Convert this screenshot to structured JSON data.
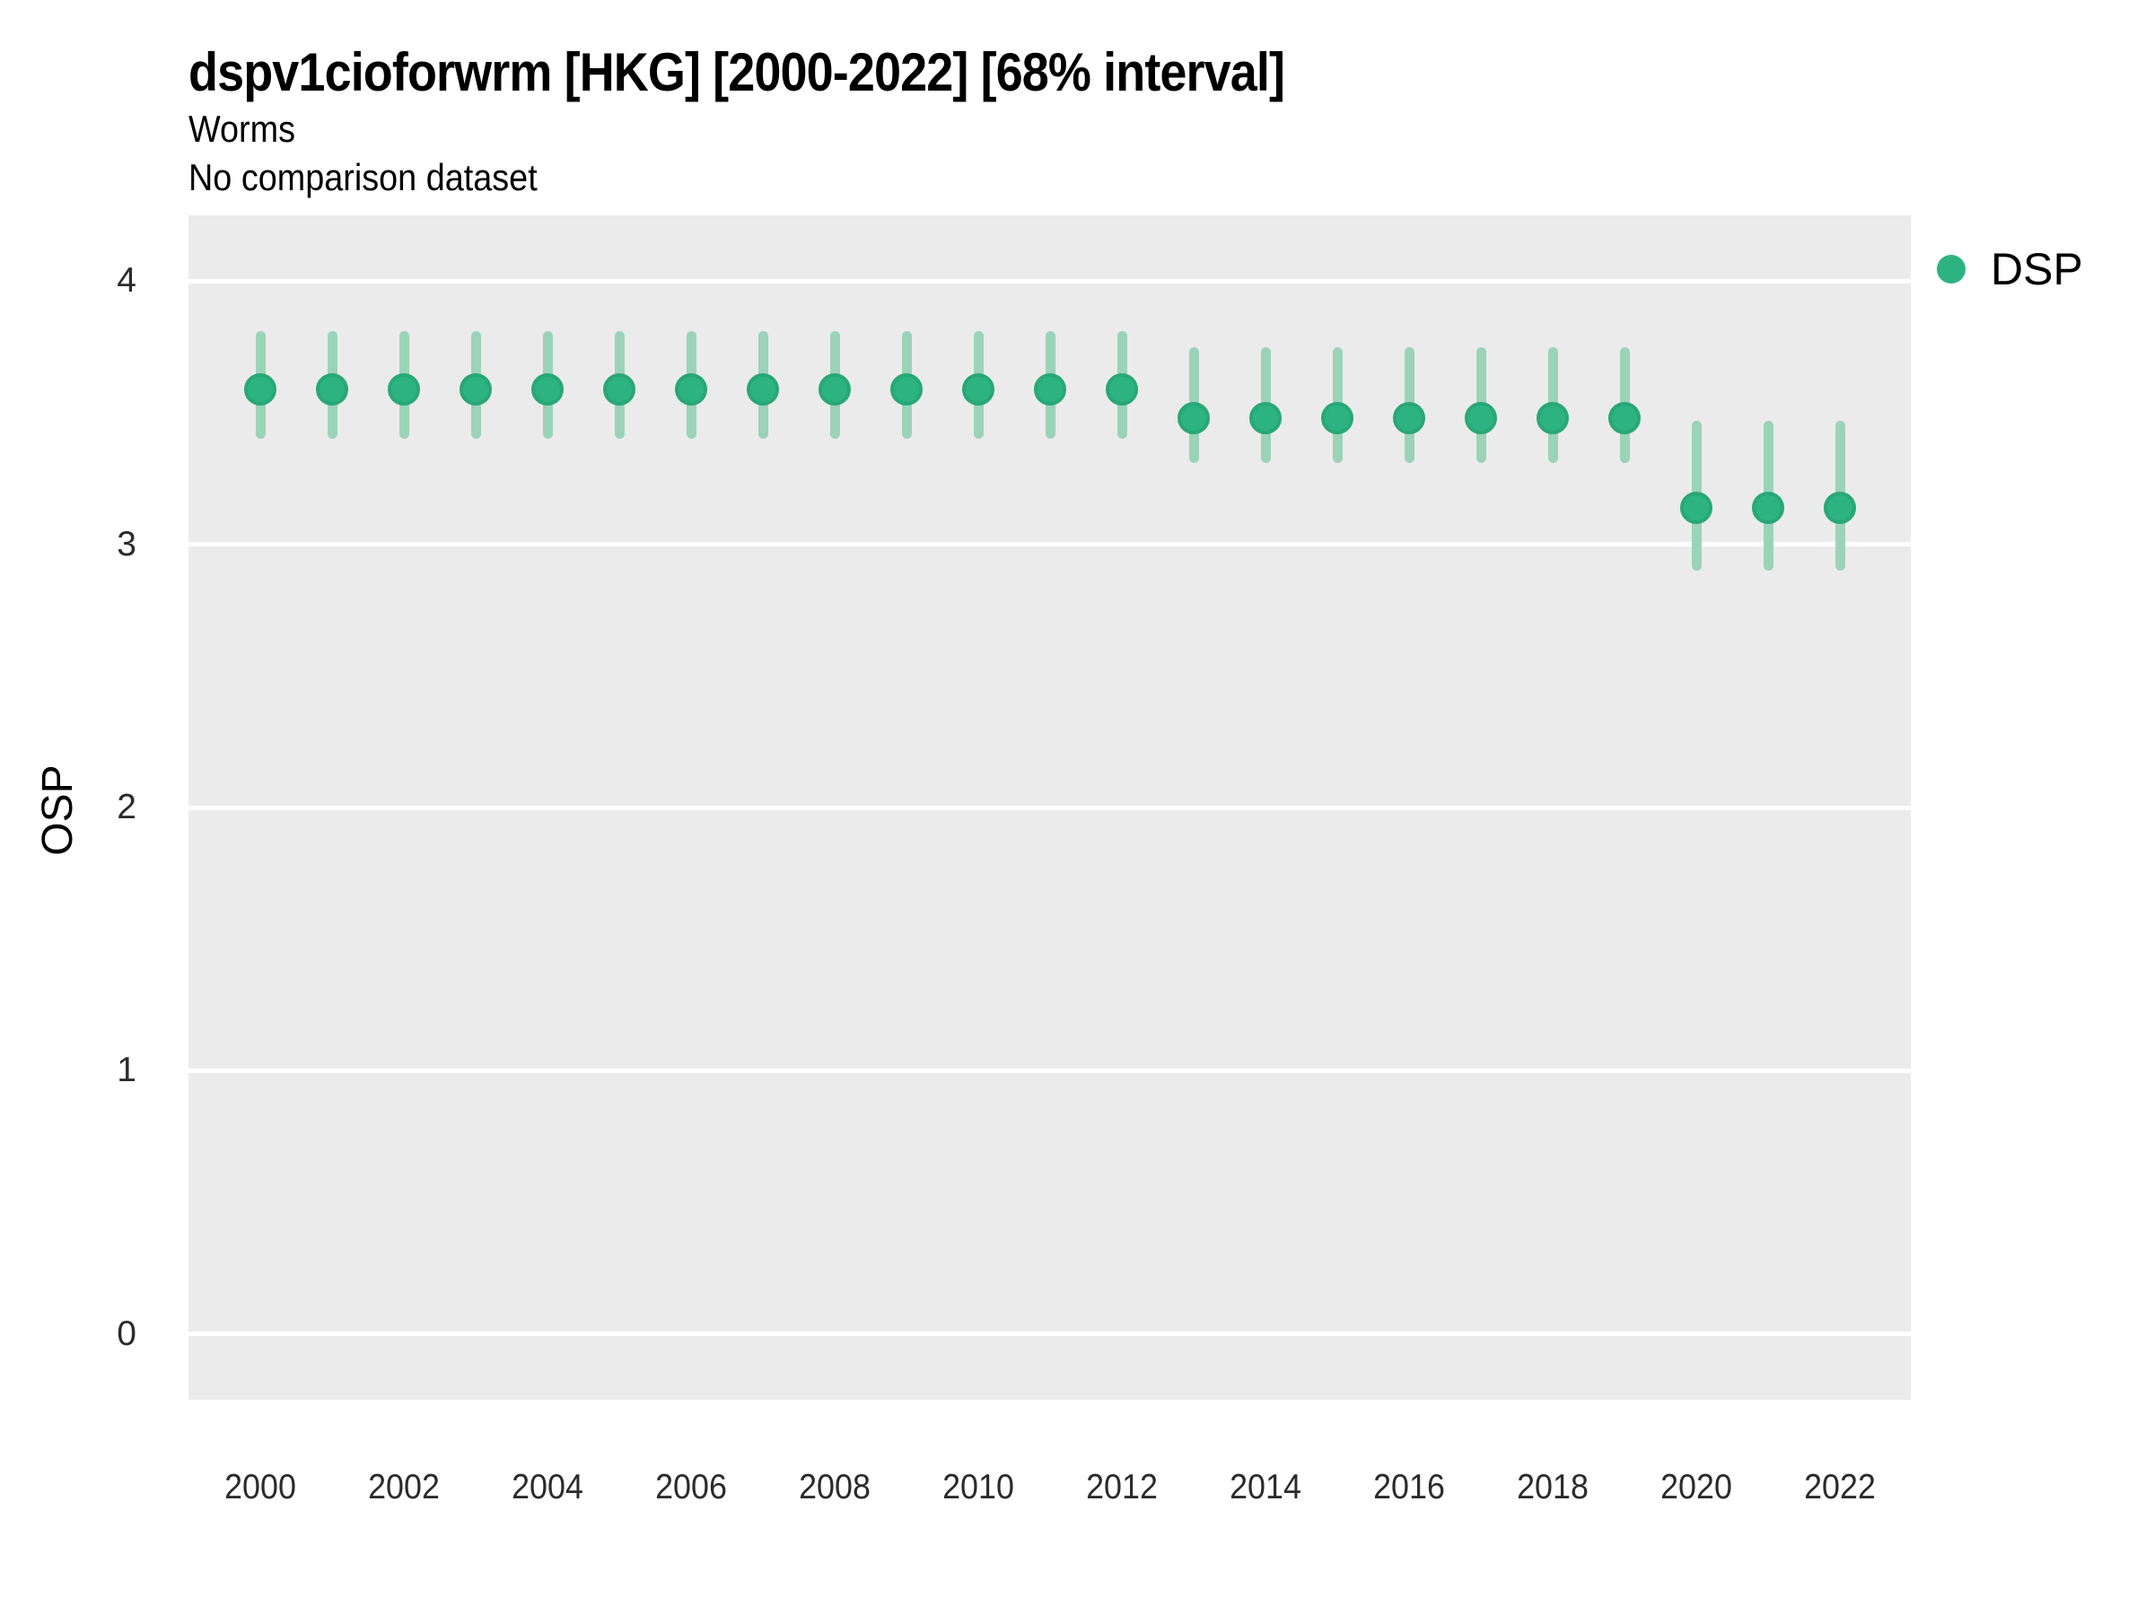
{
  "header": {
    "title": "dspv1cioforwrm [HKG] [2000-2022] [68% interval]",
    "subtitle": "Worms",
    "comparison_note": "No comparison dataset"
  },
  "legend": {
    "position": "right-top",
    "entries": [
      {
        "label": "DSP",
        "color": "#2DB381"
      }
    ]
  },
  "chart_data": {
    "type": "scatter",
    "subtype": "pointrange",
    "title": "dspv1cioforwrm [HKG] [2000-2022] [68% interval]",
    "subtitle": "Worms",
    "note": "No comparison dataset",
    "interval": "68%",
    "xlabel": "",
    "ylabel": "OSP",
    "x": [
      2000,
      2001,
      2002,
      2003,
      2004,
      2005,
      2006,
      2007,
      2008,
      2009,
      2010,
      2011,
      2012,
      2013,
      2014,
      2015,
      2016,
      2017,
      2018,
      2019,
      2020,
      2021,
      2022
    ],
    "series": [
      {
        "name": "DSP",
        "color": "#2DB381",
        "values": [
          3.59,
          3.59,
          3.59,
          3.59,
          3.59,
          3.59,
          3.59,
          3.59,
          3.59,
          3.59,
          3.59,
          3.59,
          3.59,
          3.48,
          3.48,
          3.48,
          3.48,
          3.48,
          3.48,
          3.48,
          3.14,
          3.14,
          3.14
        ],
        "lower": [
          3.4,
          3.4,
          3.4,
          3.4,
          3.4,
          3.4,
          3.4,
          3.4,
          3.4,
          3.4,
          3.4,
          3.4,
          3.4,
          3.31,
          3.31,
          3.31,
          3.31,
          3.31,
          3.31,
          3.31,
          2.9,
          2.9,
          2.9
        ],
        "upper": [
          3.81,
          3.81,
          3.81,
          3.81,
          3.81,
          3.81,
          3.81,
          3.81,
          3.81,
          3.81,
          3.81,
          3.81,
          3.81,
          3.75,
          3.75,
          3.75,
          3.75,
          3.75,
          3.75,
          3.75,
          3.47,
          3.47,
          3.47
        ]
      }
    ],
    "ylim": [
      -0.25,
      4.25
    ],
    "yticks": [
      0,
      1,
      2,
      3,
      4
    ],
    "xticks": [
      2000,
      2002,
      2004,
      2006,
      2008,
      2010,
      2012,
      2014,
      2016,
      2018,
      2020,
      2022
    ],
    "grid": "horizontal-major-only",
    "legend_position": "right-top",
    "panel_bg": "#EBEBEB",
    "grid_color": "#FFFFFF",
    "range_color": "#9BD3B9"
  }
}
